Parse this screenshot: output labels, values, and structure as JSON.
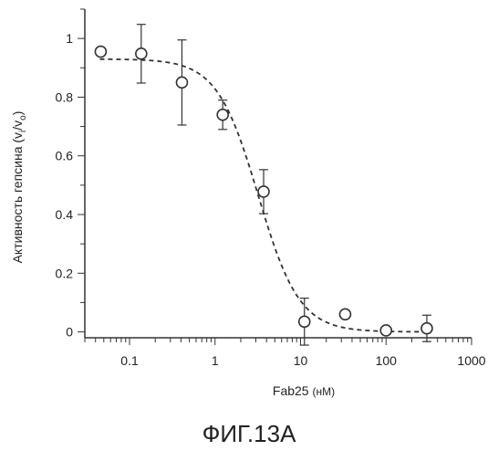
{
  "chart_data": {
    "type": "scatter",
    "xlabel_main": "Fab25",
    "xlabel_unit": "(нМ)",
    "ylabel": "Активность гепсина (v",
    "ylabel_sub1": "i",
    "ylabel_slash": "/v",
    "ylabel_sub2": "o",
    "ylabel_close": ")",
    "x_scale": "log",
    "xlim": [
      0.03,
      1000
    ],
    "ylim": [
      -0.02,
      1.1
    ],
    "x_ticks": [
      0.1,
      1,
      10,
      100,
      1000
    ],
    "x_tick_labels": [
      "0.1",
      "1",
      "10",
      "100",
      "1000"
    ],
    "y_ticks": [
      0,
      0.2,
      0.4,
      0.6,
      0.8,
      1
    ],
    "y_tick_labels": [
      "0",
      "0.2",
      "0.4",
      "0.6",
      "0.8",
      "1"
    ],
    "grid": false,
    "series": [
      {
        "points": [
          {
            "x": 0.046,
            "y": 0.955,
            "err": 0.0
          },
          {
            "x": 0.137,
            "y": 0.948,
            "err": 0.1
          },
          {
            "x": 0.41,
            "y": 0.85,
            "err": 0.145
          },
          {
            "x": 1.23,
            "y": 0.74,
            "err": 0.05
          },
          {
            "x": 3.7,
            "y": 0.478,
            "err": 0.075
          },
          {
            "x": 11.1,
            "y": 0.035,
            "err": 0.08
          },
          {
            "x": 33.3,
            "y": 0.06,
            "err": 0.0
          },
          {
            "x": 100,
            "y": 0.005,
            "err": 0.0
          },
          {
            "x": 300,
            "y": 0.012,
            "err": 0.045
          }
        ]
      }
    ],
    "fit_curve": {
      "model": "four-parameter logistic",
      "top": 0.93,
      "bottom": 0.0,
      "ic50": 3.2,
      "hill": 1.8
    }
  },
  "caption": "ФИГ.13А"
}
